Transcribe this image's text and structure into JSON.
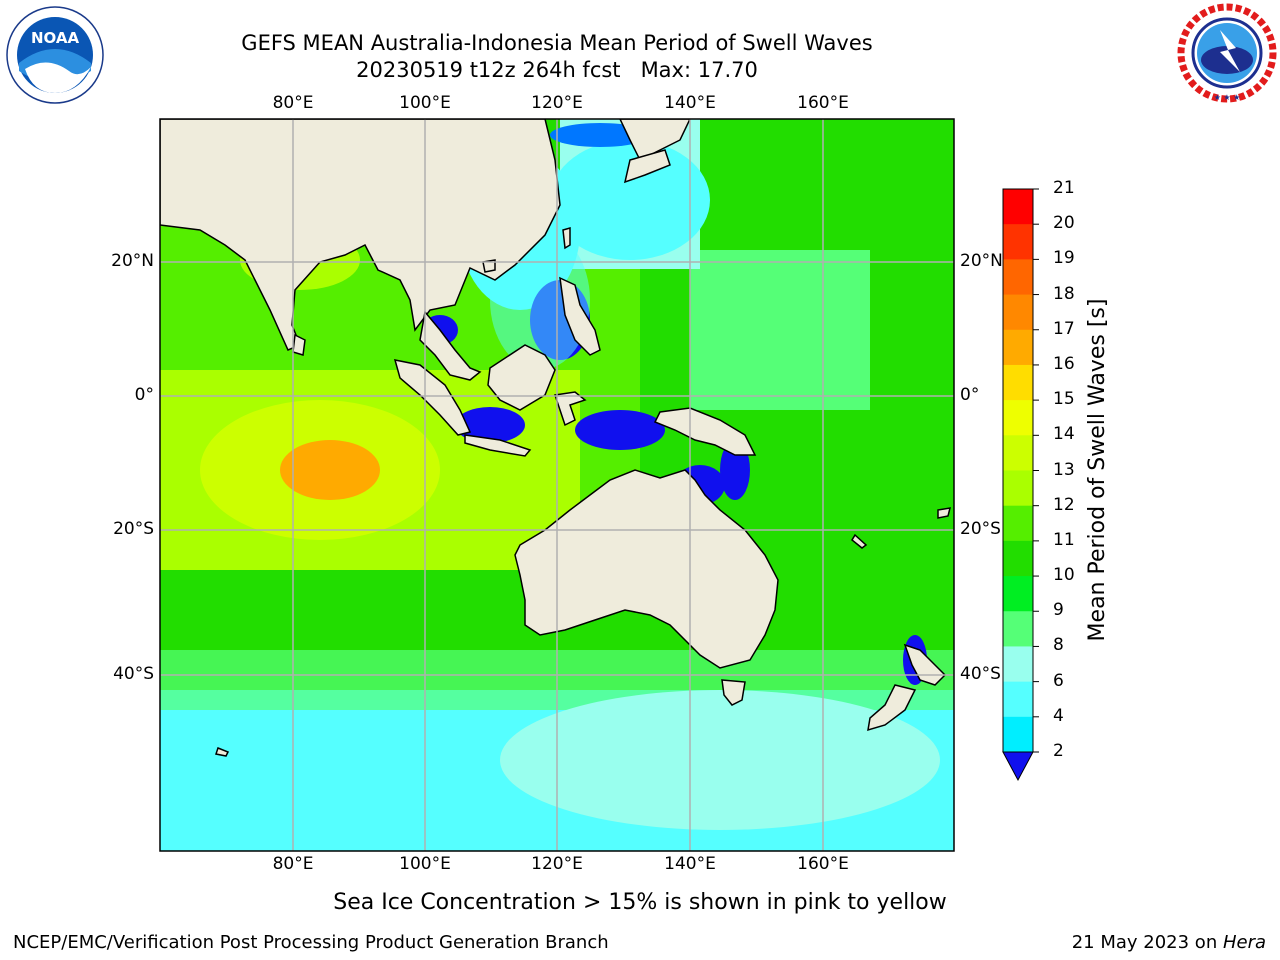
{
  "title": {
    "line1": "GEFS MEAN Australia-Indonesia Mean Period of Swell Waves",
    "line2": "20230519 t12z 264h fcst   Max: 17.70"
  },
  "logos": {
    "noaa": {
      "text": "NOAA",
      "ring_text": "NATIONAL OCEANIC AND ATMOSPHERIC ADMINISTRATION · U.S. DEPARTMENT OF COMMERCE"
    },
    "nws": {
      "ring_text": "NATIONAL WEATHER SERVICE"
    }
  },
  "map": {
    "lon_ticks": [
      "80°E",
      "100°E",
      "120°E",
      "140°E",
      "160°E"
    ],
    "lat_ticks": [
      "20°N",
      "0°",
      "20°S",
      "40°S"
    ],
    "land_color": "#efecdc",
    "gridline_color": "#b0b0b0"
  },
  "colorbar": {
    "label": "Mean Period of Swell Waves [s]",
    "ticks": [
      "21",
      "20",
      "19",
      "18",
      "17",
      "16",
      "15",
      "14",
      "13",
      "12",
      "11",
      "10",
      "9",
      "8",
      "6",
      "4",
      "2"
    ],
    "colors": [
      "#ff0000",
      "#ff3300",
      "#ff6600",
      "#ff8800",
      "#ffaa00",
      "#ffdd00",
      "#eeff00",
      "#ccff00",
      "#aaff00",
      "#55ee00",
      "#22dd00",
      "#00ee22",
      "#55ff77",
      "#99ffee",
      "#55ffff",
      "#00eeff",
      "#0077ff"
    ],
    "extend_color": "#1010ee"
  },
  "note": "Sea Ice Concentration > 15% is shown in pink to yellow",
  "footer": {
    "left": "NCEP/EMC/Verification Post Processing Product Generation Branch",
    "date": "21 May 2023 on ",
    "machine": "Hera"
  }
}
